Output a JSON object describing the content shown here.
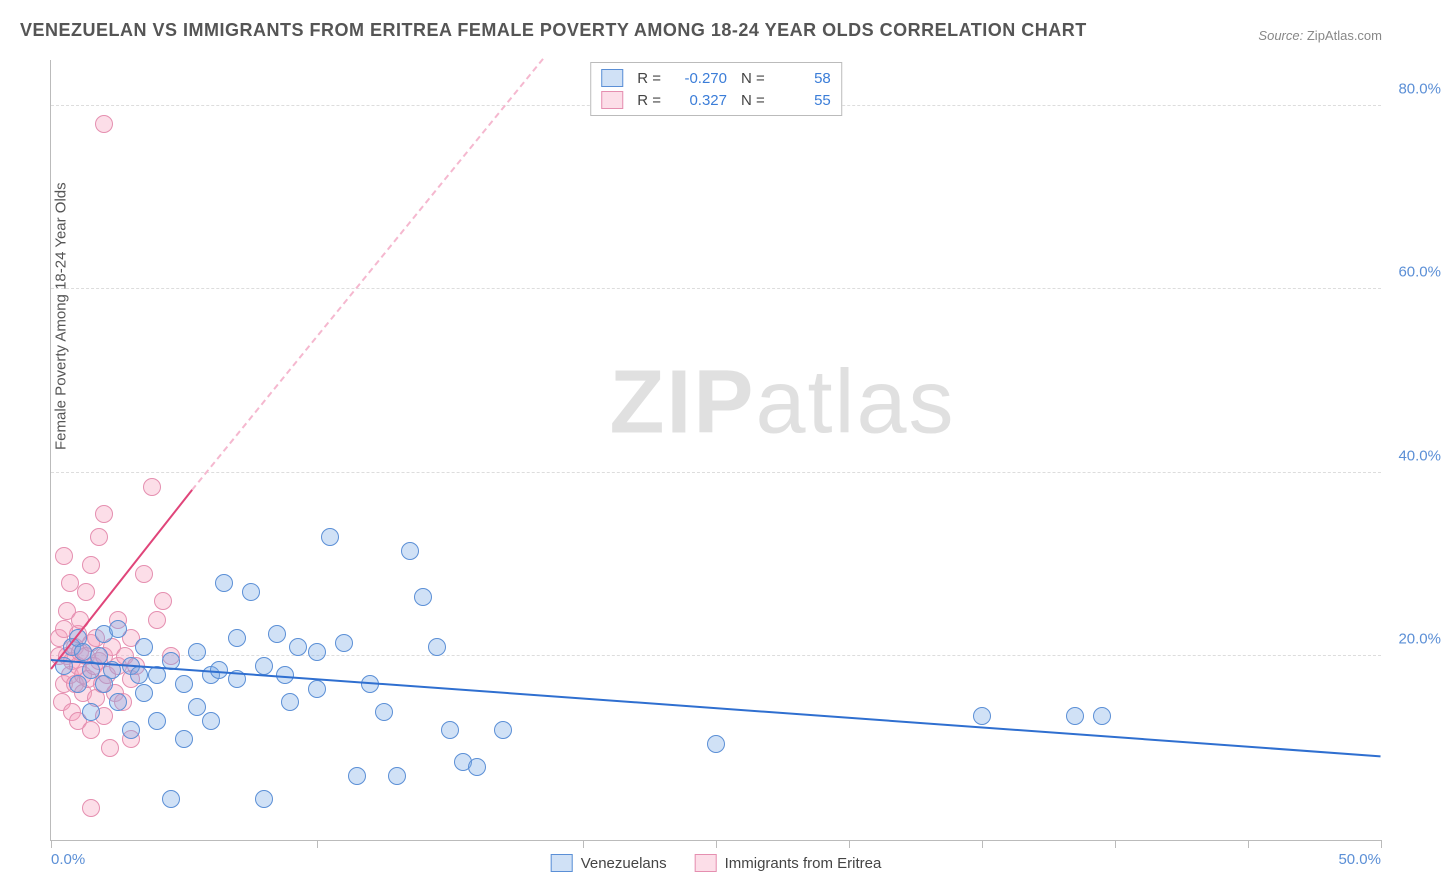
{
  "title": "VENEZUELAN VS IMMIGRANTS FROM ERITREA FEMALE POVERTY AMONG 18-24 YEAR OLDS CORRELATION CHART",
  "source_label": "Source:",
  "source_value": "ZipAtlas.com",
  "ylabel": "Female Poverty Among 18-24 Year Olds",
  "watermark_a": "ZIP",
  "watermark_b": "atlas",
  "chart": {
    "type": "scatter",
    "xlim": [
      0,
      50
    ],
    "ylim": [
      0,
      85
    ],
    "xtick_positions": [
      0,
      10,
      20,
      25,
      30,
      35,
      40,
      45,
      50
    ],
    "xtick_labels_shown": {
      "0": "0.0%",
      "50": "50.0%"
    },
    "ytick_positions": [
      20,
      40,
      60,
      80
    ],
    "ytick_labels": {
      "20": "20.0%",
      "40": "40.0%",
      "60": "60.0%",
      "80": "80.0%"
    },
    "grid_color": "#dddddd",
    "axis_color": "#bbbbbb",
    "background_color": "#ffffff",
    "label_color": "#5b8fd6",
    "marker_radius": 8,
    "marker_border_width": 1.5,
    "series": [
      {
        "name": "Venezuelans",
        "fill": "rgba(120,170,230,0.35)",
        "stroke": "#5b8fd6",
        "R": "-0.270",
        "N": "58",
        "trend": {
          "x1": 0,
          "y1": 19.5,
          "x2": 50,
          "y2": 9.0,
          "color": "#2f6fd0",
          "width": 2,
          "dashed": false
        },
        "points": [
          [
            0.5,
            19
          ],
          [
            0.8,
            21
          ],
          [
            1,
            17
          ],
          [
            1,
            22
          ],
          [
            1.2,
            20.5
          ],
          [
            1.5,
            14
          ],
          [
            1.5,
            18.5
          ],
          [
            1.8,
            20
          ],
          [
            2,
            22.5
          ],
          [
            2,
            17
          ],
          [
            2.3,
            18.5
          ],
          [
            2.5,
            15
          ],
          [
            2.5,
            23
          ],
          [
            3,
            19
          ],
          [
            3,
            12
          ],
          [
            3.3,
            18
          ],
          [
            3.5,
            16
          ],
          [
            3.5,
            21
          ],
          [
            4,
            18
          ],
          [
            4,
            13
          ],
          [
            4.5,
            19.5
          ],
          [
            4.5,
            4.5
          ],
          [
            5,
            11
          ],
          [
            5,
            17
          ],
          [
            5.5,
            14.5
          ],
          [
            5.5,
            20.5
          ],
          [
            6,
            18
          ],
          [
            6,
            13
          ],
          [
            6.3,
            18.5
          ],
          [
            6.5,
            28
          ],
          [
            7,
            17.5
          ],
          [
            7,
            22
          ],
          [
            7.5,
            27
          ],
          [
            8,
            19
          ],
          [
            8,
            4.5
          ],
          [
            8.5,
            22.5
          ],
          [
            8.8,
            18
          ],
          [
            9,
            15
          ],
          [
            9.3,
            21
          ],
          [
            10,
            20.5
          ],
          [
            10,
            16.5
          ],
          [
            10.5,
            33
          ],
          [
            11,
            21.5
          ],
          [
            11.5,
            7
          ],
          [
            12,
            17
          ],
          [
            12.5,
            14
          ],
          [
            13,
            7
          ],
          [
            13.5,
            31.5
          ],
          [
            14,
            26.5
          ],
          [
            14.5,
            21
          ],
          [
            15,
            12
          ],
          [
            15.5,
            8.5
          ],
          [
            16,
            8
          ],
          [
            17,
            12
          ],
          [
            25,
            10.5
          ],
          [
            35,
            13.5
          ],
          [
            38.5,
            13.5
          ],
          [
            39.5,
            13.5
          ]
        ]
      },
      {
        "name": "Immigrants from Eritrea",
        "fill": "rgba(245,160,190,0.35)",
        "stroke": "#e58fb0",
        "R": "0.327",
        "N": "55",
        "trend_solid": {
          "x1": 0,
          "y1": 18.5,
          "x2": 5.3,
          "y2": 38,
          "color": "#e0457a",
          "width": 2,
          "dashed": false
        },
        "trend_dashed": {
          "x1": 5.3,
          "y1": 38,
          "x2": 18.5,
          "y2": 85,
          "color": "#f5b8cf",
          "width": 2,
          "dashed": true
        },
        "points": [
          [
            0.3,
            20
          ],
          [
            0.3,
            22
          ],
          [
            0.4,
            15
          ],
          [
            0.5,
            17
          ],
          [
            0.5,
            23
          ],
          [
            0.5,
            31
          ],
          [
            0.6,
            20
          ],
          [
            0.6,
            25
          ],
          [
            0.7,
            18
          ],
          [
            0.7,
            28
          ],
          [
            0.8,
            19.5
          ],
          [
            0.8,
            14
          ],
          [
            0.9,
            21
          ],
          [
            0.9,
            17
          ],
          [
            1,
            22.5
          ],
          [
            1,
            19
          ],
          [
            1,
            13
          ],
          [
            1.1,
            24
          ],
          [
            1.1,
            20.5
          ],
          [
            1.2,
            18
          ],
          [
            1.2,
            16
          ],
          [
            1.3,
            20
          ],
          [
            1.3,
            27
          ],
          [
            1.4,
            17.5
          ],
          [
            1.5,
            21.5
          ],
          [
            1.5,
            30
          ],
          [
            1.5,
            12
          ],
          [
            1.6,
            19
          ],
          [
            1.7,
            15.5
          ],
          [
            1.7,
            22
          ],
          [
            1.8,
            19.5
          ],
          [
            1.8,
            33
          ],
          [
            1.9,
            17
          ],
          [
            2,
            20
          ],
          [
            2,
            35.5
          ],
          [
            2,
            13.5
          ],
          [
            2.1,
            18
          ],
          [
            2.2,
            10
          ],
          [
            2.3,
            21
          ],
          [
            2.4,
            16
          ],
          [
            2.5,
            19
          ],
          [
            2.5,
            24
          ],
          [
            2.7,
            15
          ],
          [
            2.8,
            20
          ],
          [
            3,
            22
          ],
          [
            3,
            17.5
          ],
          [
            3.2,
            19
          ],
          [
            3.5,
            29
          ],
          [
            3.8,
            38.5
          ],
          [
            4,
            24
          ],
          [
            4.2,
            26
          ],
          [
            4.5,
            20
          ],
          [
            2,
            78
          ],
          [
            1.5,
            3.5
          ],
          [
            3,
            11
          ]
        ]
      }
    ],
    "stats_labels": {
      "R": "R =",
      "N": "N ="
    },
    "legend_labels": {
      "a": "Venezuelans",
      "b": "Immigrants from Eritrea"
    }
  }
}
